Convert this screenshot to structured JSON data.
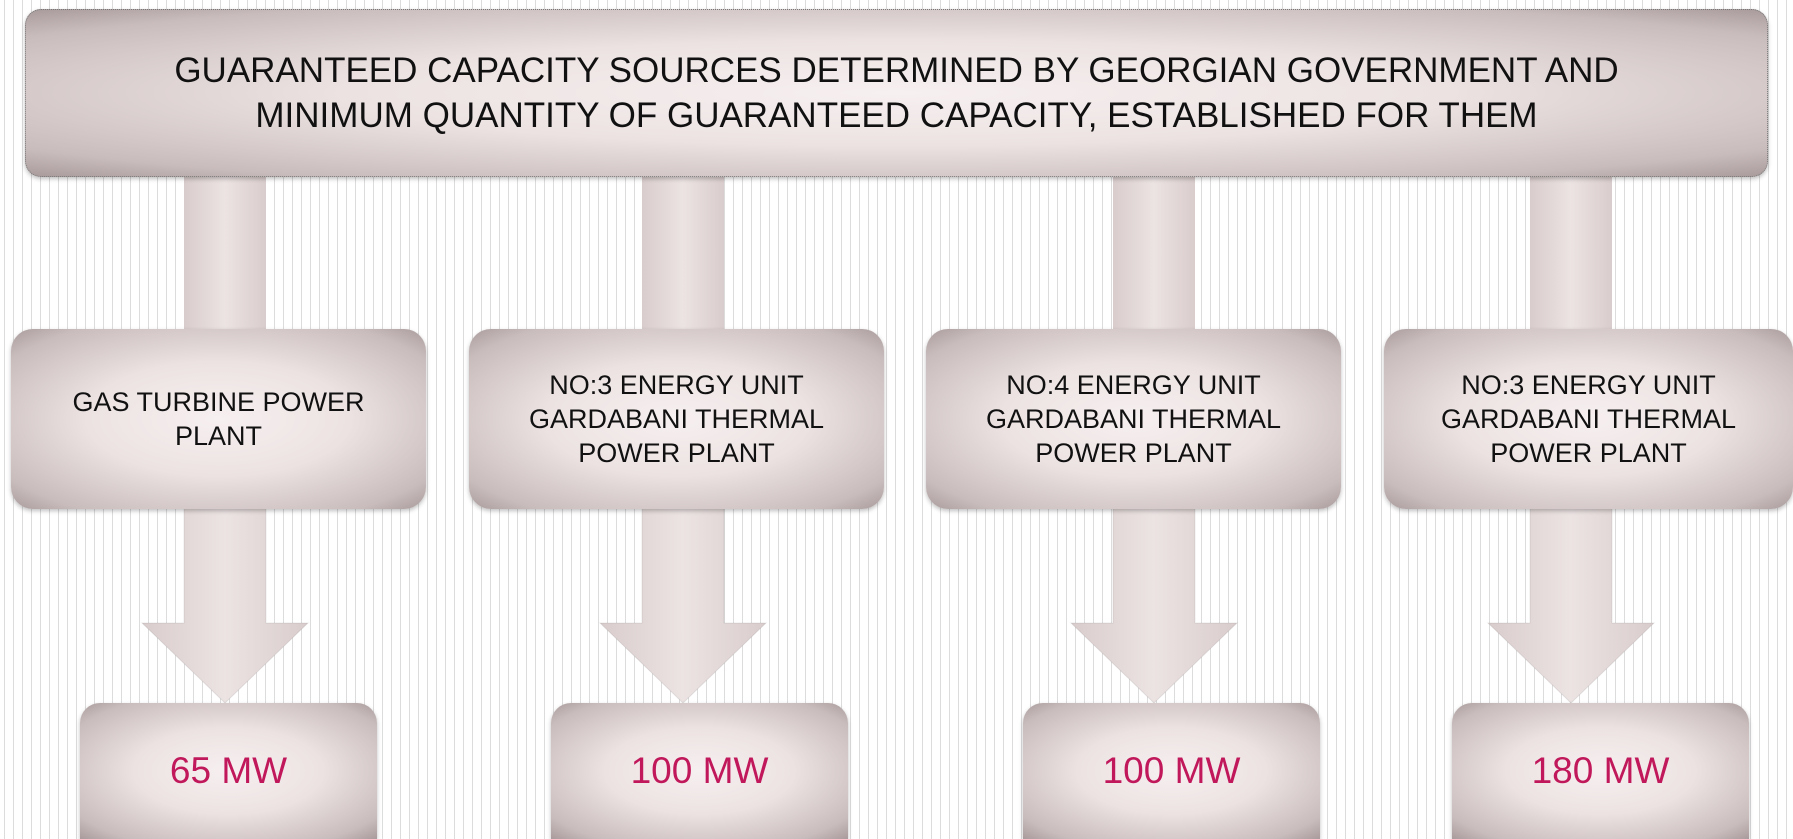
{
  "header": {
    "title": "GUARANTEED CAPACITY SOURCES DETERMINED BY GEORGIAN GOVERNMENT AND MINIMUM QUANTITY OF  GUARANTEED CAPACITY, ESTABLISHED FOR THEM"
  },
  "nodes": [
    {
      "label": "GAS TURBINE POWER PLANT",
      "capacity": "65 MW"
    },
    {
      "label": "NO:3 ENERGY UNIT GARDABANI THERMAL POWER PLANT",
      "capacity": "100 MW"
    },
    {
      "label": "NO:4 ENERGY UNIT GARDABANI THERMAL POWER PLANT",
      "capacity": "100 MW"
    },
    {
      "label": "NO:3 ENERGY UNIT GARDABANI THERMAL POWER PLANT",
      "capacity": "180 MW"
    }
  ]
}
